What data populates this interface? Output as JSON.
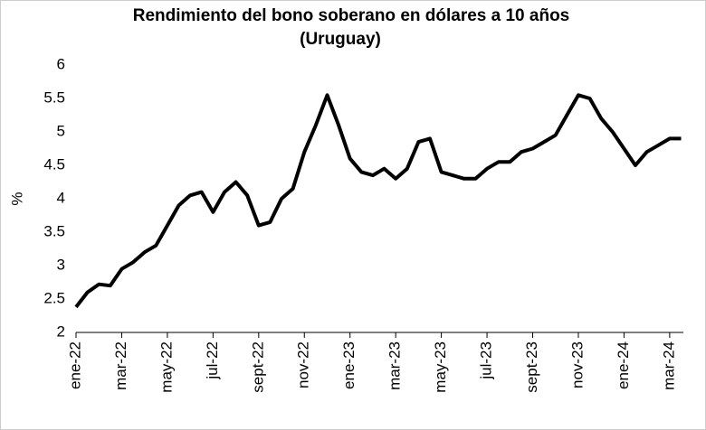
{
  "chart_data": {
    "type": "line",
    "title": [
      "Rendimiento del bono soberano en dólares a 10 años",
      "(Uruguay)"
    ],
    "y_label": "%",
    "x": [
      0,
      0.5,
      1,
      1.5,
      2,
      2.5,
      3,
      3.5,
      4,
      4.5,
      5,
      5.5,
      6,
      6.5,
      7,
      7.5,
      8,
      8.5,
      9,
      9.5,
      10,
      10.5,
      11,
      11.5,
      12,
      12.5,
      13,
      13.5,
      14,
      14.5,
      15,
      15.5,
      16,
      16.5,
      17,
      17.5,
      18,
      18.5,
      19,
      19.5,
      20,
      20.5,
      21,
      21.5,
      22,
      22.5,
      23,
      23.5,
      24,
      24.5,
      25,
      25.5,
      26,
      26.5
    ],
    "series": [
      {
        "name": "Rendimiento",
        "color": "#000000",
        "values": [
          2.38,
          2.6,
          2.72,
          2.7,
          2.95,
          3.05,
          3.2,
          3.3,
          3.6,
          3.9,
          4.05,
          4.1,
          3.8,
          4.1,
          4.25,
          4.05,
          3.6,
          3.65,
          4.0,
          4.15,
          4.7,
          5.1,
          5.55,
          5.1,
          4.6,
          4.4,
          4.35,
          4.45,
          4.3,
          4.45,
          4.85,
          4.9,
          4.4,
          4.35,
          4.3,
          4.3,
          4.45,
          4.55,
          4.55,
          4.7,
          4.75,
          4.85,
          4.95,
          5.25,
          5.55,
          5.5,
          5.2,
          5.0,
          4.75,
          4.5,
          4.7,
          4.8,
          4.9,
          4.9
        ]
      }
    ],
    "xlim": [
      0,
      26.6
    ],
    "xticks": [
      {
        "value": 0,
        "label": "ene-22"
      },
      {
        "value": 2,
        "label": "mar-22"
      },
      {
        "value": 4,
        "label": "may-22"
      },
      {
        "value": 6,
        "label": "jul-22"
      },
      {
        "value": 8,
        "label": "sept-22"
      },
      {
        "value": 10,
        "label": "nov-22"
      },
      {
        "value": 12,
        "label": "ene-23"
      },
      {
        "value": 14,
        "label": "mar-23"
      },
      {
        "value": 16,
        "label": "may-23"
      },
      {
        "value": 18,
        "label": "jul-23"
      },
      {
        "value": 20,
        "label": "sept-23"
      },
      {
        "value": 22,
        "label": "nov-23"
      },
      {
        "value": 24,
        "label": "ene-24"
      },
      {
        "value": 26,
        "label": "mar-24"
      }
    ],
    "ylim": [
      2,
      6
    ],
    "yticks": [
      2,
      2.5,
      3,
      3.5,
      4,
      4.5,
      5,
      5.5,
      6
    ],
    "grid": false
  }
}
